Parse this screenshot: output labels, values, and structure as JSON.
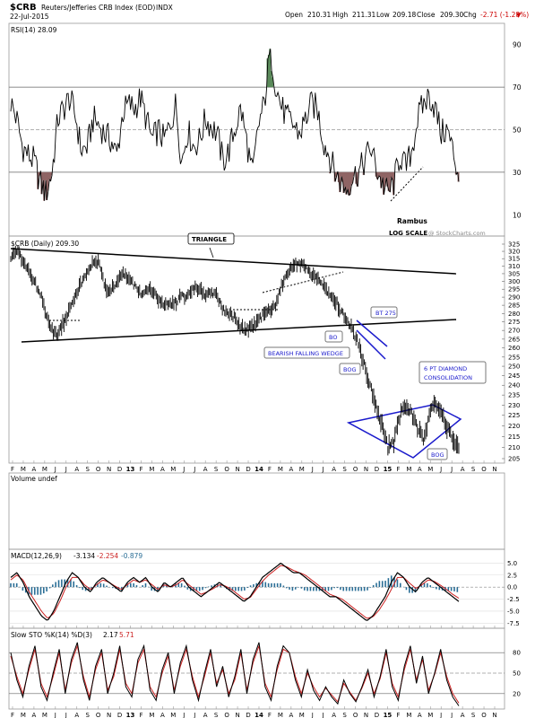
{
  "header": {
    "symbol": "$CRB",
    "name": "Reuters/Jefferies CRB Index (EOD)",
    "exchange": "INDX",
    "date": "22-Jul-2015",
    "watermark": "@ StockCharts.com",
    "open_label": "Open",
    "open": "210.31",
    "high_label": "High",
    "high": "211.31",
    "low_label": "Low",
    "low": "209.18",
    "close_label": "Close",
    "close": "209.30",
    "chg_label": "Chg",
    "chg": "-2.71 (-1.28%)"
  },
  "colors": {
    "rsi_overbought": "#5b8a5b",
    "rsi_oversold": "#8f6464",
    "annotation_blue": "#1a1acc",
    "macd_hist": "#2a6e96",
    "signal_red": "#cc2222",
    "chg_red": "#cc0000"
  },
  "chart_data": [
    {
      "type": "line",
      "panel": "rsi",
      "legend": "RSI(14) 28.09",
      "yticks": [
        10,
        30,
        50,
        70,
        90
      ],
      "ylim": [
        0,
        100
      ],
      "reference_lines": [
        30,
        50,
        70
      ],
      "series": [
        {
          "name": "RSI(14)",
          "values": [
            63,
            55,
            42,
            38,
            35,
            25,
            20,
            30,
            55,
            60,
            65,
            56,
            40,
            42,
            55,
            52,
            48,
            45,
            38,
            58,
            62,
            60,
            65,
            55,
            45,
            50,
            45,
            52,
            62,
            35,
            50,
            42,
            45,
            55,
            52,
            48,
            35,
            40,
            50,
            60,
            45,
            28,
            52,
            62,
            88,
            70,
            60,
            55,
            52,
            48,
            55,
            62,
            60,
            45,
            38,
            30,
            25,
            22,
            28,
            30,
            35,
            42,
            32,
            25,
            20,
            25,
            38,
            32,
            40,
            55,
            62,
            66,
            60,
            48,
            50,
            40,
            28
          ]
        }
      ],
      "annotations": [
        {
          "text": "Rambus"
        },
        {
          "text": "LOG SCALE"
        }
      ]
    },
    {
      "type": "line",
      "panel": "price",
      "legend": "$CRB (Daily) 209.30",
      "scale": "log",
      "yticks": [
        205,
        210,
        215,
        220,
        225,
        230,
        235,
        240,
        245,
        250,
        255,
        260,
        265,
        270,
        275,
        280,
        285,
        290,
        295,
        300,
        305,
        310,
        315,
        320,
        325
      ],
      "ylim": [
        205,
        325
      ],
      "series": [
        {
          "name": "$CRB (Daily)",
          "values": [
            316,
            320,
            314,
            307,
            300,
            292,
            280,
            270,
            268,
            275,
            284,
            292,
            299,
            305,
            314,
            312,
            296,
            294,
            300,
            305,
            302,
            297,
            292,
            296,
            294,
            288,
            286,
            285,
            287,
            290,
            291,
            296,
            295,
            291,
            292,
            291,
            283,
            280,
            277,
            272,
            270,
            272,
            275,
            280,
            282,
            286,
            298,
            305,
            311,
            312,
            308,
            305,
            302,
            298,
            292,
            288,
            282,
            276,
            270,
            262,
            250,
            240,
            230,
            220,
            210,
            212,
            225,
            230,
            226,
            219,
            213,
            225,
            230,
            227,
            220,
            215,
            209
          ]
        }
      ],
      "annotations": [
        {
          "text": "TRIANGLE"
        },
        {
          "text": "BT 275"
        },
        {
          "text": "BO"
        },
        {
          "text": "BEARISH FALLING WEDGE"
        },
        {
          "text": "BOG"
        },
        {
          "text": "6 PT DIAMOND"
        },
        {
          "text": "CONSOLIDATION"
        },
        {
          "text": "BOG"
        }
      ],
      "xticks": [
        "F",
        "M",
        "A",
        "M",
        "J",
        "J",
        "A",
        "S",
        "O",
        "N",
        "D",
        "13",
        "F",
        "M",
        "A",
        "M",
        "J",
        "J",
        "A",
        "S",
        "O",
        "N",
        "D",
        "14",
        "F",
        "M",
        "A",
        "M",
        "J",
        "J",
        "A",
        "S",
        "O",
        "N",
        "D",
        "15",
        "F",
        "M",
        "A",
        "M",
        "J",
        "J",
        "A",
        "S",
        "O",
        "N"
      ]
    },
    {
      "type": "bar",
      "panel": "volume",
      "legend": "Volume undef",
      "values": []
    },
    {
      "type": "line",
      "panel": "macd",
      "legend": {
        "name": "MACD(12,26,9)",
        "macd": "-3.134",
        "signal": "-2.254",
        "hist": "-0.879"
      },
      "yticks": [
        "5.0",
        "2.5",
        "0.0",
        "-2.5",
        "-5.0",
        "-7.5"
      ],
      "ylim": [
        -8,
        6
      ],
      "series": [
        {
          "name": "MACD",
          "values": [
            2,
            3,
            1,
            -2,
            -4,
            -6,
            -7,
            -5,
            -2,
            1,
            3,
            2,
            0,
            -1,
            1,
            2,
            1,
            0,
            -1,
            1,
            2,
            1,
            2,
            0,
            -1,
            1,
            0,
            1,
            2,
            0,
            -1,
            -2,
            -1,
            0,
            1,
            0,
            -1,
            -2,
            -3,
            -2,
            0,
            2,
            3,
            4,
            5,
            4,
            3,
            3,
            2,
            1,
            0,
            -1,
            -2,
            -2,
            -3,
            -4,
            -5,
            -6,
            -7,
            -6,
            -4,
            -2,
            1,
            3,
            2,
            0,
            -1,
            1,
            2,
            1,
            0,
            -1,
            -2,
            -3
          ]
        },
        {
          "name": "Signal",
          "values": [
            1.5,
            2.5,
            1.5,
            -1,
            -3,
            -5,
            -6.5,
            -5.5,
            -3,
            0,
            2,
            2,
            0.5,
            -0.5,
            0.5,
            1.5,
            1,
            0.2,
            -0.5,
            0.5,
            1.5,
            1,
            1.5,
            0.5,
            -0.5,
            0.5,
            0,
            0.5,
            1.5,
            0.5,
            -0.5,
            -1.5,
            -1,
            -0.3,
            0.5,
            0.2,
            -0.5,
            -1.5,
            -2.5,
            -2.2,
            -0.5,
            1.2,
            2.5,
            3.5,
            4.5,
            4.2,
            3.5,
            3,
            2.5,
            1.5,
            0.5,
            -0.5,
            -1.5,
            -2,
            -2.5,
            -3.5,
            -4.5,
            -5.5,
            -6.5,
            -6.2,
            -4.8,
            -2.8,
            -0.5,
            2,
            2,
            0.8,
            -0.3,
            0.5,
            1.5,
            1.2,
            0.4,
            -0.5,
            -1.5,
            -2.3
          ]
        }
      ]
    },
    {
      "type": "line",
      "panel": "stochastic",
      "legend": {
        "name": "Slow STO %K(14) %D(3)",
        "k": "2.17",
        "d": "5.71"
      },
      "yticks": [
        20,
        50,
        80
      ],
      "ylim": [
        0,
        100
      ],
      "reference_lines": [
        20,
        50,
        80
      ],
      "series": [
        {
          "name": "%K",
          "values": [
            80,
            40,
            15,
            60,
            90,
            30,
            10,
            50,
            85,
            20,
            70,
            95,
            40,
            10,
            60,
            85,
            20,
            50,
            90,
            30,
            15,
            70,
            90,
            25,
            10,
            55,
            80,
            20,
            65,
            90,
            40,
            10,
            50,
            85,
            30,
            60,
            15,
            45,
            85,
            20,
            70,
            95,
            30,
            10,
            60,
            90,
            80,
            40,
            15,
            55,
            25,
            10,
            30,
            15,
            5,
            40,
            20,
            8,
            30,
            55,
            15,
            45,
            85,
            30,
            10,
            60,
            90,
            35,
            75,
            20,
            50,
            85,
            40,
            15,
            2
          ]
        },
        {
          "name": "%D",
          "values": [
            75,
            45,
            20,
            55,
            85,
            35,
            15,
            45,
            80,
            25,
            65,
            90,
            45,
            15,
            55,
            80,
            25,
            45,
            85,
            35,
            20,
            65,
            85,
            30,
            15,
            50,
            75,
            25,
            60,
            85,
            45,
            15,
            45,
            80,
            35,
            55,
            20,
            40,
            80,
            25,
            65,
            90,
            35,
            15,
            55,
            85,
            80,
            45,
            20,
            50,
            30,
            15,
            28,
            18,
            8,
            35,
            22,
            10,
            28,
            50,
            20,
            42,
            80,
            35,
            15,
            55,
            85,
            40,
            70,
            25,
            48,
            80,
            45,
            20,
            6
          ]
        }
      ]
    }
  ]
}
